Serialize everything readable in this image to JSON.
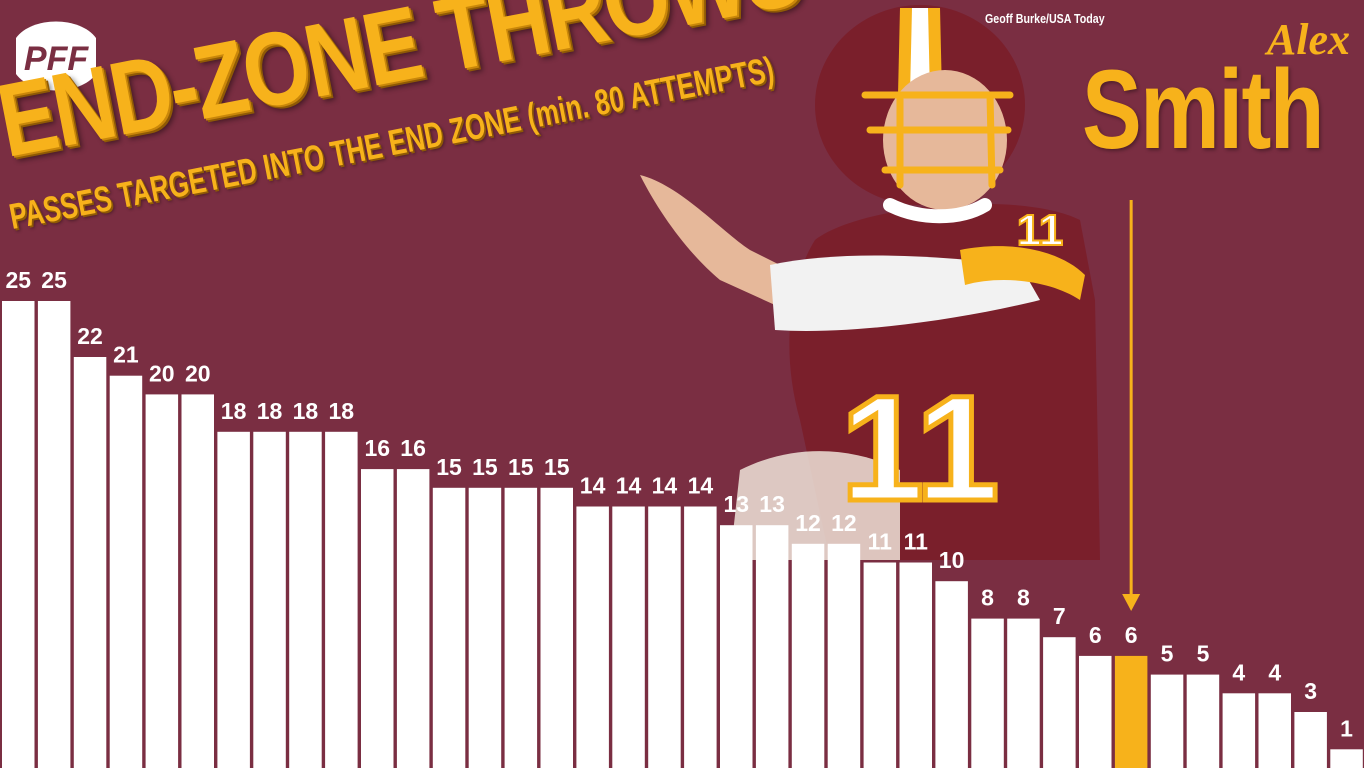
{
  "branding": {
    "logo_text": "PFF"
  },
  "header": {
    "title": "END-ZONE THROWS",
    "subtitle": "PASSES TARGETED INTO THE END ZONE (min. 80 ATTEMPTS)",
    "photo_credit": "Geoff Burke/USA Today"
  },
  "highlight": {
    "first_name": "Alex",
    "last_name": "Smith",
    "jersey_number": "11"
  },
  "colors": {
    "background": "#7a2e42",
    "bar": "#ffffff",
    "bar_highlight": "#f7b21b",
    "label": "#ffffff",
    "label_highlight": "#f7b21b",
    "accent": "#f7b21b"
  },
  "chart_data": {
    "type": "bar",
    "title": "END-ZONE THROWS",
    "subtitle": "PASSES TARGETED INTO THE END ZONE (min. 80 ATTEMPTS)",
    "values": [
      25,
      25,
      22,
      21,
      20,
      20,
      18,
      18,
      18,
      18,
      16,
      16,
      15,
      15,
      15,
      15,
      14,
      14,
      14,
      14,
      13,
      13,
      12,
      12,
      11,
      11,
      10,
      8,
      8,
      7,
      6,
      6,
      5,
      5,
      4,
      4,
      3,
      1
    ],
    "highlight_index": 31,
    "ylim": [
      0,
      25
    ],
    "grid": false,
    "legend": "none",
    "data_labels": true
  }
}
